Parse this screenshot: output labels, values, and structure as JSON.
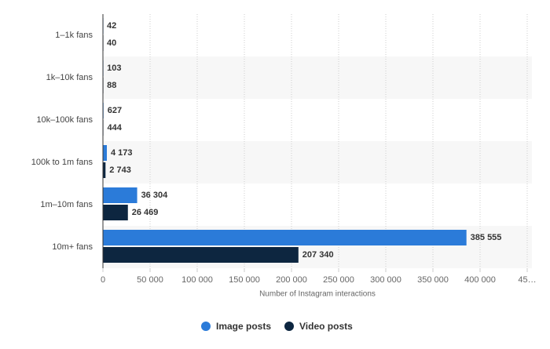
{
  "chart_data": {
    "type": "bar",
    "orientation": "horizontal",
    "x_label": "Number of Instagram interactions",
    "categories": [
      "1–1k fans",
      "1k–10k fans",
      "10k–100k fans",
      "100k to 1m fans",
      "1m–10m fans",
      "10m+ fans"
    ],
    "series": [
      {
        "name": "Image posts",
        "color": "#2b7bd9",
        "values": [
          42,
          103,
          627,
          4173,
          36304,
          385555
        ],
        "value_labels": [
          "42",
          "103",
          "627",
          "4 173",
          "36 304",
          "385 555"
        ]
      },
      {
        "name": "Video posts",
        "color": "#0d2640",
        "values": [
          40,
          88,
          444,
          2743,
          26469,
          207340
        ],
        "value_labels": [
          "40",
          "88",
          "444",
          "2 743",
          "26 469",
          "207 340"
        ]
      }
    ],
    "xlim": [
      0,
      450000
    ],
    "xticks": [
      0,
      {
        "value": 50000,
        "label": "50 000"
      },
      {
        "value": 100000,
        "label": "100 000"
      },
      {
        "value": 150000,
        "label": "150 000"
      },
      {
        "value": 200000,
        "label": "200 000"
      },
      {
        "value": 250000,
        "label": "250 000"
      },
      {
        "value": 300000,
        "label": "300 000"
      },
      {
        "value": 350000,
        "label": "350 000"
      },
      {
        "value": 400000,
        "label": "400 000"
      },
      {
        "value": 450000,
        "label": "45…"
      }
    ],
    "grid": true,
    "legend": "bottom"
  }
}
